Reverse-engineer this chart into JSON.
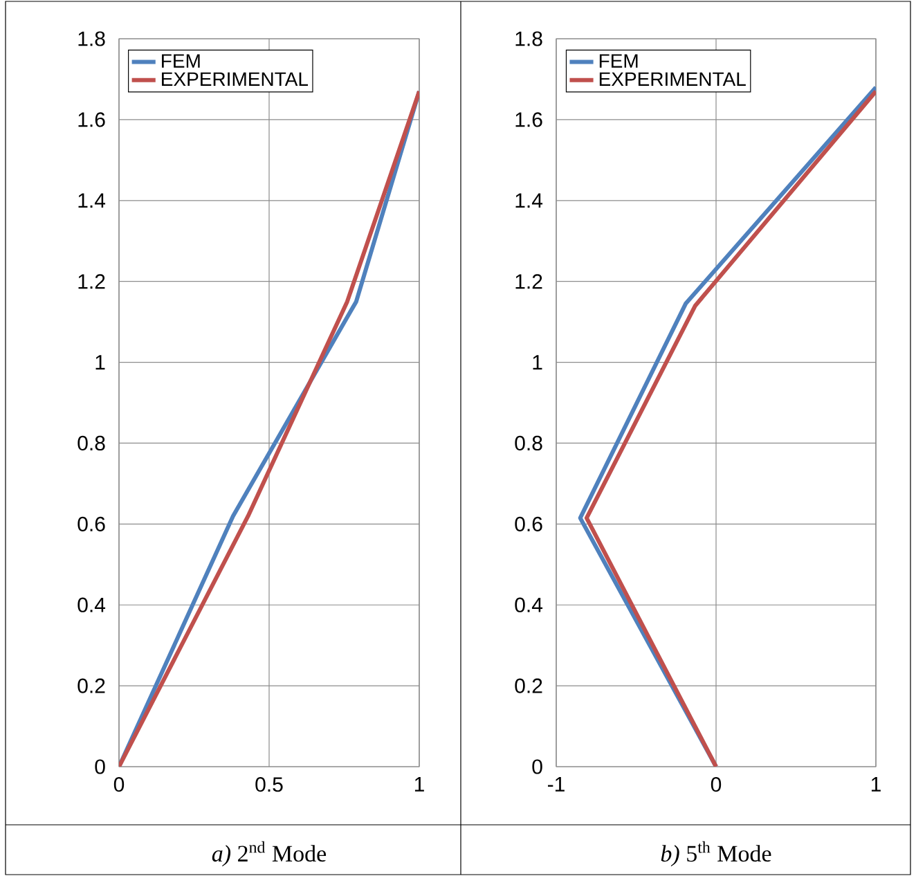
{
  "chart_data": [
    {
      "type": "line",
      "xlabel": "*a)*      2$^{nd}$ Mode",
      "xlim": [
        0,
        1
      ],
      "xticks": [
        0,
        0.5,
        1
      ],
      "ylim": [
        0,
        1.8
      ],
      "yticks": [
        0,
        0.2,
        0.4,
        0.6,
        0.8,
        1,
        1.2,
        1.4,
        1.6,
        1.8
      ],
      "grid": true,
      "legend": "top left",
      "series": [
        {
          "name": "FEM",
          "color": "#4f81bd",
          "x": [
            0,
            0.38,
            0.79,
            1
          ],
          "values": [
            0,
            0.62,
            1.15,
            1.67
          ]
        },
        {
          "name": "EXPERIMENTAL",
          "color": "#c0504d",
          "x": [
            0,
            0.43,
            0.76,
            1
          ],
          "values": [
            0,
            0.62,
            1.15,
            1.67
          ]
        }
      ]
    },
    {
      "type": "line",
      "xlabel": "*b)*      5$^{th}$ Mode",
      "xlim": [
        -1,
        1
      ],
      "xticks": [
        -1,
        0,
        1
      ],
      "ylim": [
        0,
        1.8
      ],
      "yticks": [
        0,
        0.2,
        0.4,
        0.6,
        0.8,
        1,
        1.2,
        1.4,
        1.6,
        1.8
      ],
      "grid": true,
      "legend": "top left",
      "series": [
        {
          "name": "FEM",
          "color": "#4f81bd",
          "x": [
            0,
            -0.85,
            -0.19,
            1
          ],
          "values": [
            0,
            0.615,
            1.145,
            1.68
          ]
        },
        {
          "name": "EXPERIMENTAL",
          "color": "#c0504d",
          "x": [
            0,
            -0.81,
            -0.13,
            1
          ],
          "values": [
            0,
            0.615,
            1.14,
            1.67
          ]
        }
      ]
    }
  ]
}
